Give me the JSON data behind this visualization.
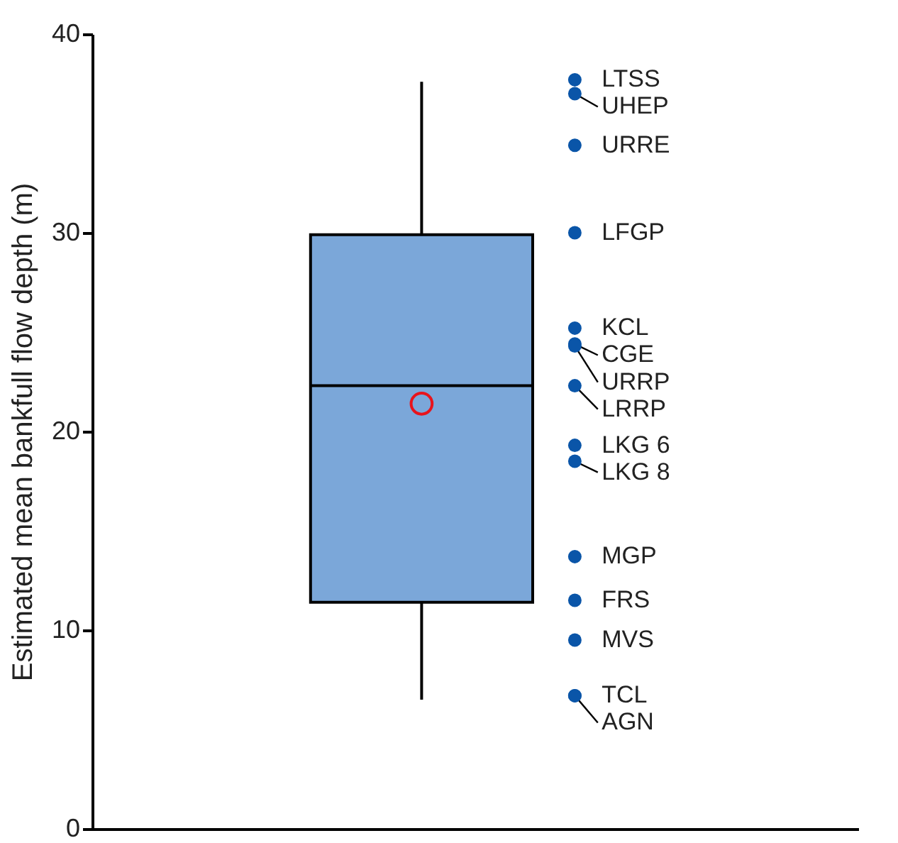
{
  "chart_data": {
    "type": "box",
    "ylabel": "Estimated mean bankfull flow depth (m)",
    "categories": [
      null
    ],
    "ylim": [
      0,
      40
    ],
    "yticks": [
      0,
      10,
      20,
      30,
      40
    ],
    "tick_labels": "y",
    "grid": false,
    "series": [
      {
        "color": "#7ba7d9",
        "boxes": [
          {
            "low": 6.5,
            "q1": 11.4,
            "median": 22.3,
            "q3": 29.9,
            "high": 37.6,
            "mean": 21.4
          }
        ]
      },
      {
        "type": "scatter",
        "color": "#0a55a8",
        "marker": "circle",
        "x": [
          null,
          null,
          null,
          null,
          null,
          null,
          null,
          null,
          null,
          null,
          null,
          null,
          null,
          null,
          null
        ],
        "values": [
          37.7,
          37.0,
          34.4,
          30.0,
          25.2,
          24.4,
          24.3,
          22.3,
          19.3,
          18.5,
          13.7,
          11.5,
          9.5,
          6.7,
          6.7
        ],
        "value_labels": [
          "LTSS",
          "UHEP",
          "URRE",
          "LFGP",
          "KCL",
          "CGE",
          "URRP",
          "LRRP",
          "LKG 6",
          "LKG 8",
          "MGP",
          "FRS",
          "MVS",
          "TCL",
          "AGN"
        ]
      }
    ]
  }
}
